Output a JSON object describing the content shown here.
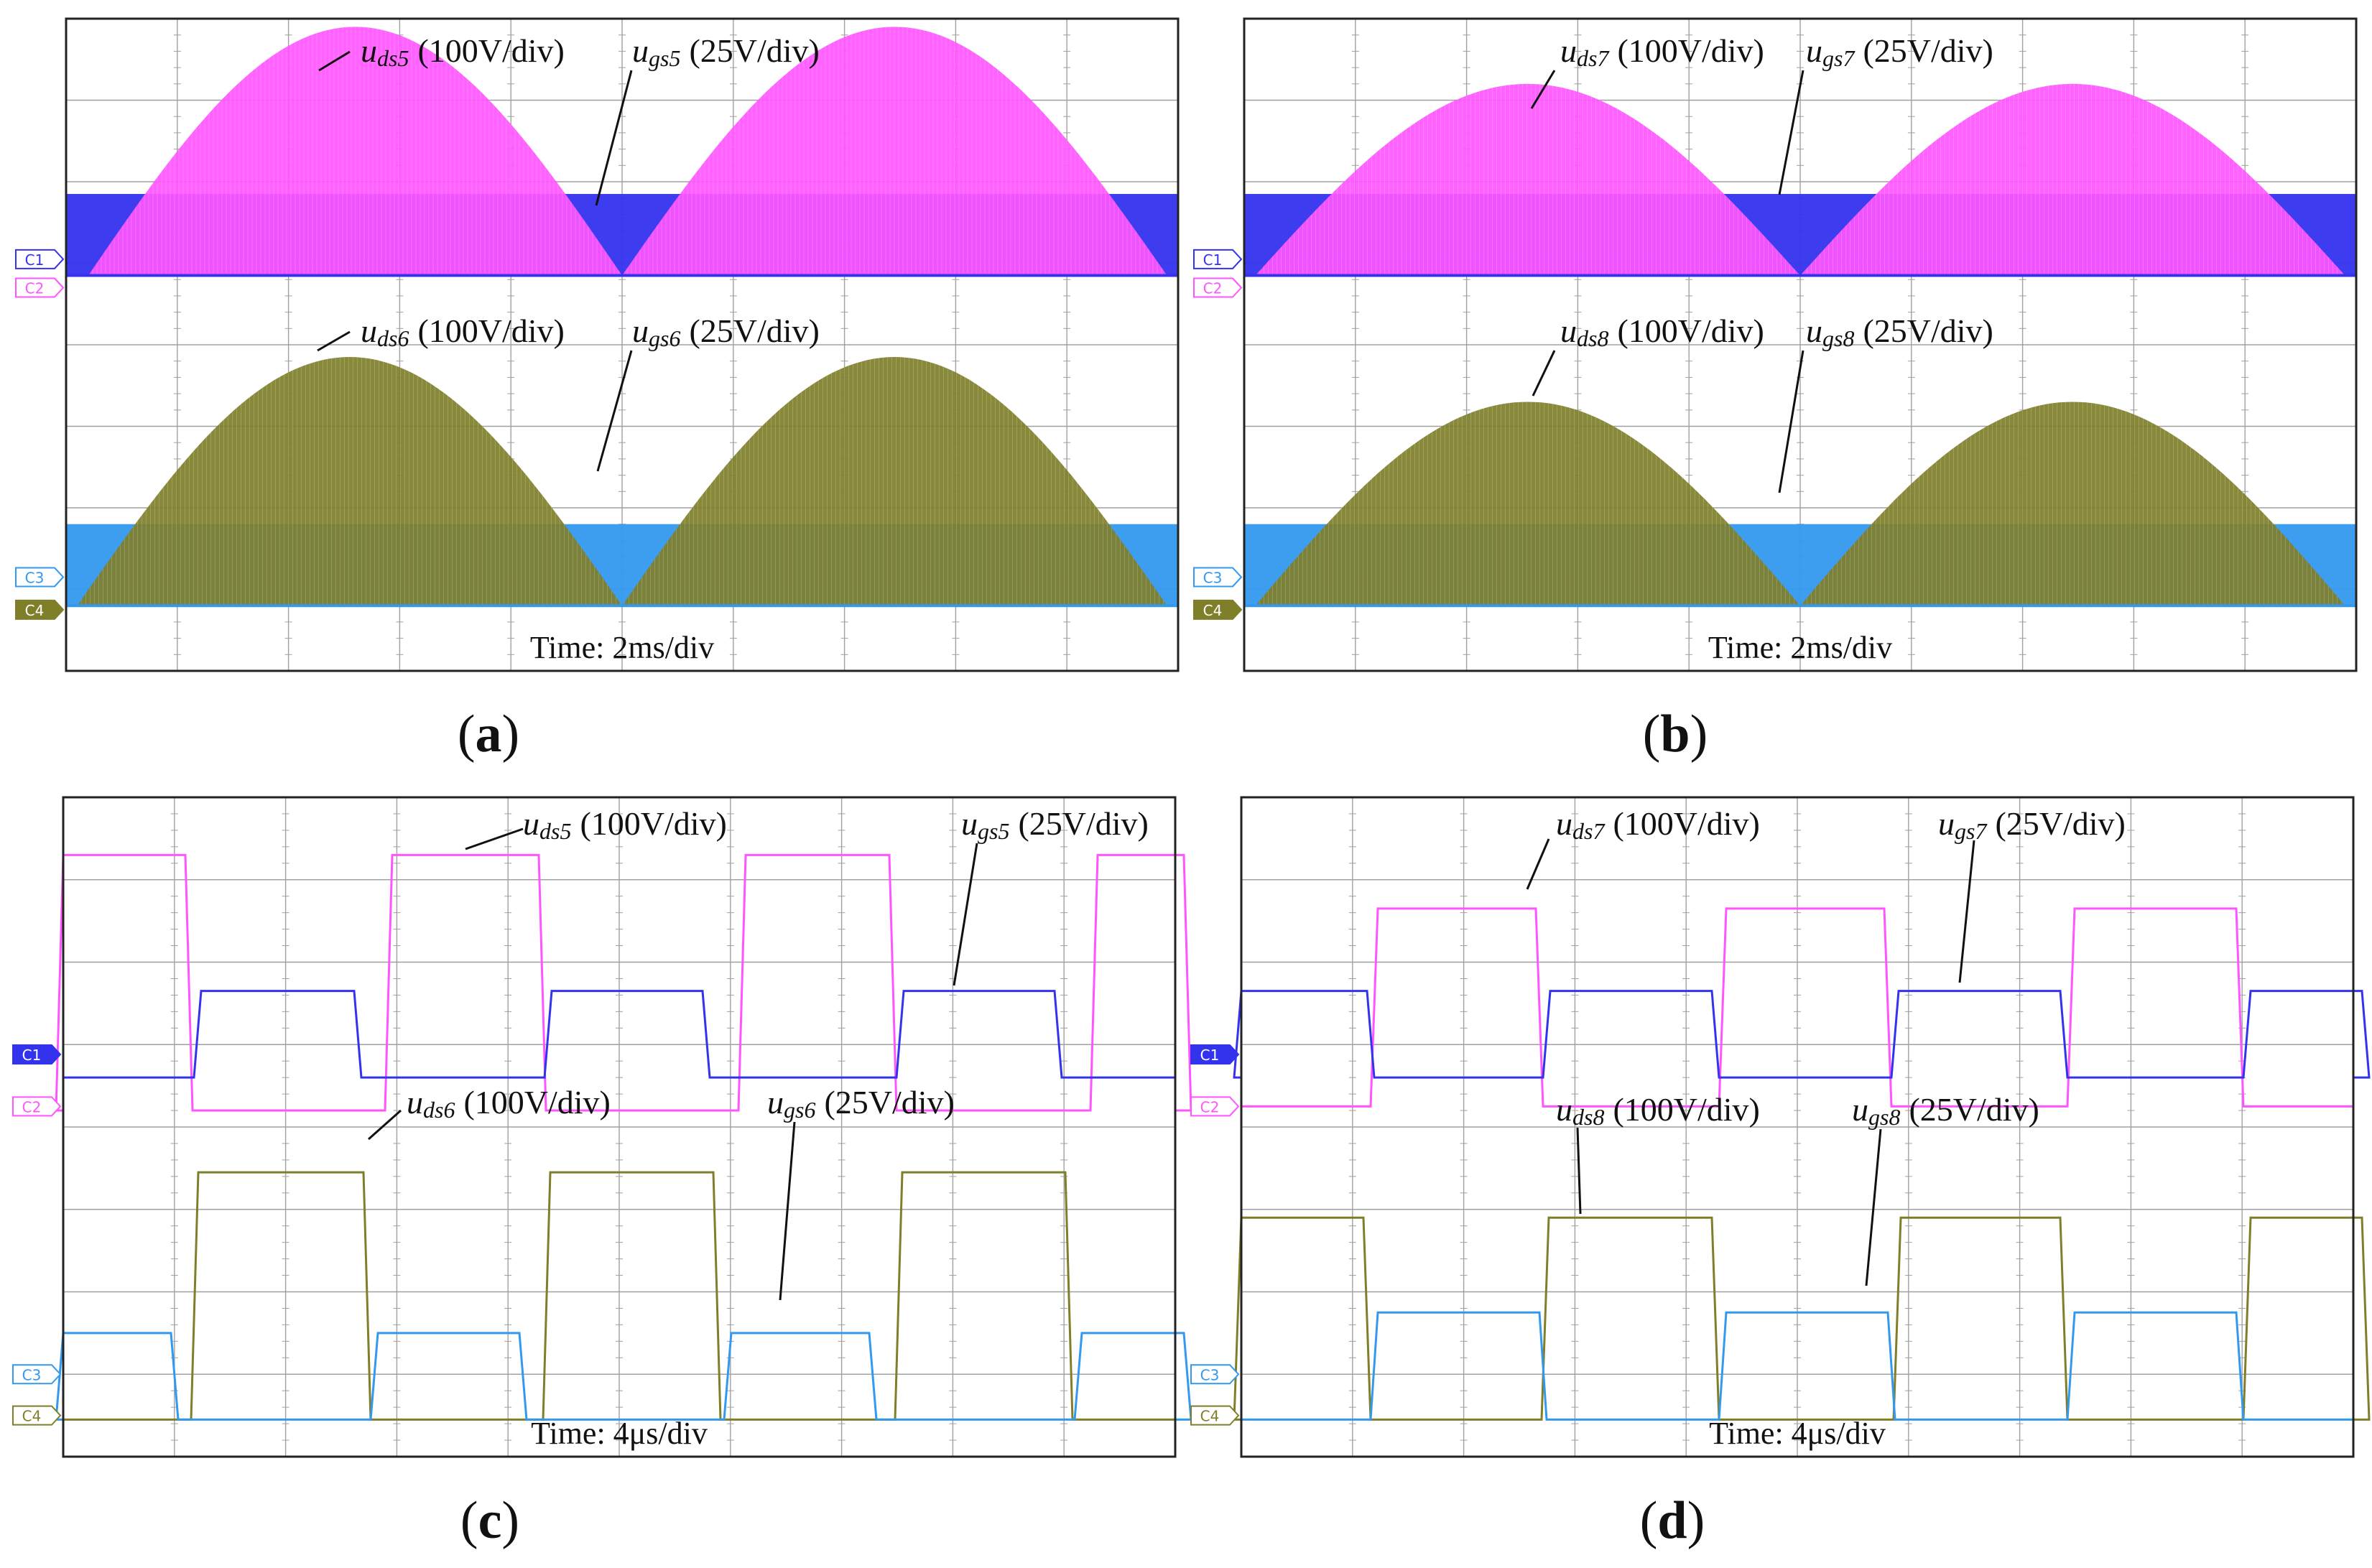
{
  "figure": {
    "colors": {
      "C1": "#3333ee",
      "C2": "#ff55ff",
      "C3": "#3399ee",
      "C4": "#7f7f2a",
      "grid": "#a0a0a0",
      "border": "#222222"
    },
    "channel_tags": [
      "C1",
      "C2",
      "C3",
      "C4"
    ]
  },
  "chart_data": [
    {
      "id": "a",
      "label": "a",
      "type": "line",
      "time_text": "Time: 2ms/div",
      "traces": [
        {
          "channel": "C1",
          "kind": "gate-band",
          "name_main": "u",
          "name_sub": "gs5",
          "scale": "(25V/div)",
          "amplitude_div": 1
        },
        {
          "channel": "C2",
          "kind": "envelope",
          "name_main": "u",
          "name_sub": "ds5",
          "scale": "(100V/div)",
          "peak_div": 3.05
        },
        {
          "channel": "C3",
          "kind": "gate-band",
          "name_main": "u",
          "name_sub": "gs6",
          "scale": "(25V/div)",
          "amplitude_div": 1
        },
        {
          "channel": "C4",
          "kind": "envelope",
          "name_main": "u",
          "name_sub": "ds6",
          "scale": "(100V/div)",
          "peak_div": 3.05
        }
      ]
    },
    {
      "id": "b",
      "label": "b",
      "type": "line",
      "time_text": "Time: 2ms/div",
      "traces": [
        {
          "channel": "C1",
          "kind": "gate-band",
          "name_main": "u",
          "name_sub": "gs7",
          "scale": "(25V/div)",
          "amplitude_div": 1
        },
        {
          "channel": "C2",
          "kind": "envelope",
          "name_main": "u",
          "name_sub": "ds7",
          "scale": "(100V/div)",
          "peak_div": 2.35
        },
        {
          "channel": "C3",
          "kind": "gate-band",
          "name_main": "u",
          "name_sub": "gs8",
          "scale": "(25V/div)",
          "amplitude_div": 1
        },
        {
          "channel": "C4",
          "kind": "envelope",
          "name_main": "u",
          "name_sub": "ds8",
          "scale": "(100V/div)",
          "peak_div": 2.5
        }
      ]
    },
    {
      "id": "c",
      "label": "c",
      "type": "line",
      "time_text": "Time: 4μs/div",
      "traces": [
        {
          "channel": "C1",
          "kind": "pulse",
          "name_main": "u",
          "name_sub": "gs5",
          "scale": "(25V/div)",
          "amplitude_div": 1.05
        },
        {
          "channel": "C2",
          "kind": "pulse",
          "name_main": "u",
          "name_sub": "ds5",
          "scale": "(100V/div)",
          "amplitude_div": 3.1
        },
        {
          "channel": "C3",
          "kind": "pulse",
          "name_main": "u",
          "name_sub": "gs6",
          "scale": "(25V/div)",
          "amplitude_div": 1.05
        },
        {
          "channel": "C4",
          "kind": "pulse",
          "name_main": "u",
          "name_sub": "ds6",
          "scale": "(100V/div)",
          "amplitude_div": 3.0
        }
      ]
    },
    {
      "id": "d",
      "label": "d",
      "type": "line",
      "time_text": "Time: 4μs/div",
      "traces": [
        {
          "channel": "C1",
          "kind": "pulse",
          "name_main": "u",
          "name_sub": "gs7",
          "scale": "(25V/div)",
          "amplitude_div": 1.05
        },
        {
          "channel": "C2",
          "kind": "pulse",
          "name_main": "u",
          "name_sub": "ds7",
          "scale": "(100V/div)",
          "amplitude_div": 2.4
        },
        {
          "channel": "C3",
          "kind": "pulse",
          "name_main": "u",
          "name_sub": "gs8",
          "scale": "(25V/div)",
          "amplitude_div": 1.3
        },
        {
          "channel": "C4",
          "kind": "pulse",
          "name_main": "u",
          "name_sub": "ds8",
          "scale": "(100V/div)",
          "amplitude_div": 2.45
        }
      ]
    }
  ]
}
